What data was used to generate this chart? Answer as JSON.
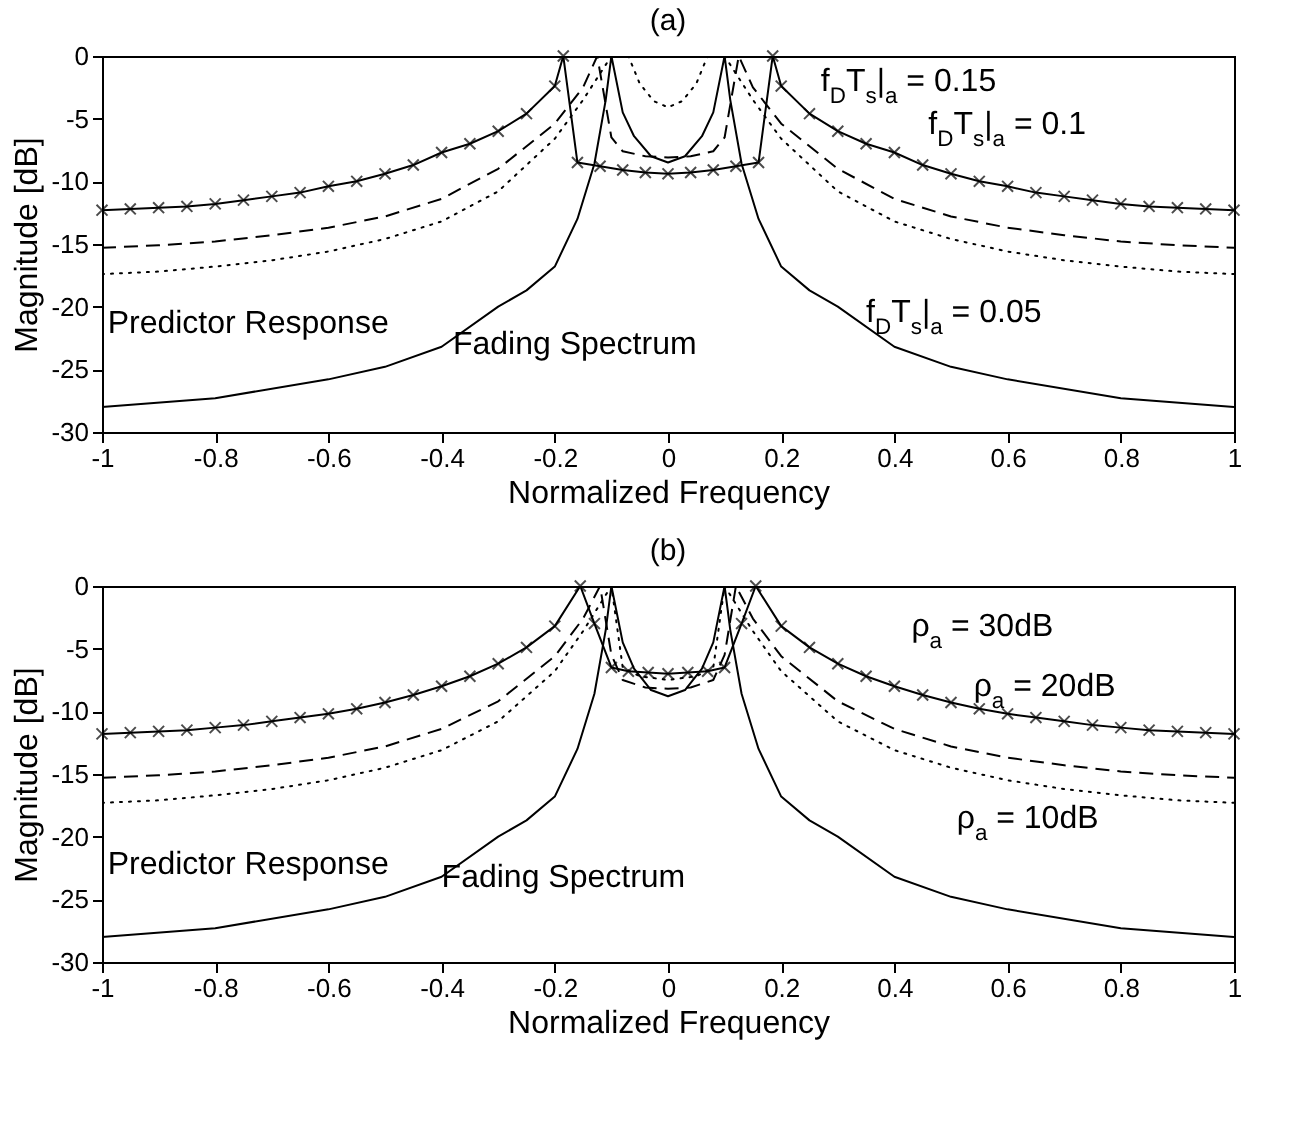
{
  "chart_data": [
    {
      "type": "line",
      "title": "(a)",
      "xlabel": "Normalized Frequency",
      "ylabel": "Magnitude [dB]",
      "xlim": [
        -1,
        1
      ],
      "ylim": [
        -30,
        0
      ],
      "xticks": [
        -1,
        -0.8,
        -0.6,
        -0.4,
        -0.2,
        0,
        0.2,
        0.4,
        0.6,
        0.8,
        1
      ],
      "yticks": [
        -30,
        -25,
        -20,
        -15,
        -10,
        -5,
        0
      ],
      "grid": false,
      "series": [
        {
          "color": "#000000",
          "line_style": "solid",
          "x": [
            -1,
            -0.8,
            -0.6,
            -0.5,
            -0.4,
            -0.3,
            -0.25,
            -0.2,
            -0.16,
            -0.13,
            -0.11,
            -0.1,
            -0.08,
            -0.06,
            -0.03,
            0,
            0.03,
            0.06,
            0.08,
            0.1,
            0.11,
            0.13,
            0.16,
            0.2,
            0.25,
            0.3,
            0.4,
            0.5,
            0.6,
            0.8,
            1
          ],
          "values": [
            -28,
            -27.3,
            -25.8,
            -24.8,
            -23.2,
            -20,
            -18.7,
            -16.8,
            -13,
            -8.6,
            -3.5,
            0,
            -4.5,
            -6.4,
            -8,
            -8.5,
            -8,
            -6.4,
            -4.5,
            0,
            -3.5,
            -8.6,
            -13,
            -16.8,
            -18.7,
            -20,
            -23.2,
            -24.8,
            -25.8,
            -27.3,
            -28
          ]
        },
        {
          "color": "#000000",
          "line_style": "solid",
          "marker": "cross",
          "x": [
            -1,
            -0.95,
            -0.9,
            -0.85,
            -0.8,
            -0.75,
            -0.7,
            -0.65,
            -0.6,
            -0.55,
            -0.5,
            -0.45,
            -0.4,
            -0.35,
            -0.3,
            -0.25,
            -0.2,
            -0.185,
            -0.16,
            -0.12,
            -0.08,
            -0.04,
            0,
            0.04,
            0.08,
            0.12,
            0.16,
            0.185,
            0.2,
            0.25,
            0.3,
            0.35,
            0.4,
            0.45,
            0.5,
            0.55,
            0.6,
            0.65,
            0.7,
            0.75,
            0.8,
            0.85,
            0.9,
            0.95,
            1
          ],
          "values": [
            -12.3,
            -12.2,
            -12.1,
            -12,
            -11.8,
            -11.5,
            -11.2,
            -10.9,
            -10.4,
            -10,
            -9.4,
            -8.7,
            -7.7,
            -7,
            -6,
            -4.6,
            -2.4,
            0,
            -8.5,
            -8.8,
            -9.1,
            -9.3,
            -9.4,
            -9.3,
            -9.1,
            -8.8,
            -8.5,
            0,
            -2.4,
            -4.6,
            -6,
            -7,
            -7.7,
            -8.7,
            -9.4,
            -10,
            -10.4,
            -10.9,
            -11.2,
            -11.5,
            -11.8,
            -12,
            -12.1,
            -12.2,
            -12.3
          ]
        },
        {
          "color": "#000000",
          "line_style": "dashed",
          "x": [
            -1,
            -0.9,
            -0.8,
            -0.7,
            -0.6,
            -0.5,
            -0.4,
            -0.3,
            -0.2,
            -0.15,
            -0.125,
            -0.1,
            -0.08,
            -0.04,
            0,
            0.04,
            0.08,
            0.1,
            0.125,
            0.15,
            0.2,
            0.3,
            0.4,
            0.5,
            0.6,
            0.7,
            0.8,
            0.9,
            1
          ],
          "values": [
            -15.3,
            -15.1,
            -14.8,
            -14.3,
            -13.7,
            -12.8,
            -11.4,
            -9,
            -5.4,
            -2.5,
            0,
            -6.5,
            -7.6,
            -8,
            -8.1,
            -8,
            -7.6,
            -6.5,
            0,
            -2.5,
            -5.4,
            -9,
            -11.4,
            -12.8,
            -13.7,
            -14.3,
            -14.8,
            -15.1,
            -15.3
          ]
        },
        {
          "color": "#000000",
          "line_style": "dotted",
          "x": [
            -1,
            -0.9,
            -0.8,
            -0.7,
            -0.6,
            -0.5,
            -0.4,
            -0.3,
            -0.2,
            -0.15,
            -0.1,
            -0.07,
            -0.05,
            -0.025,
            0,
            0.025,
            0.05,
            0.07,
            0.1,
            0.15,
            0.2,
            0.3,
            0.4,
            0.5,
            0.6,
            0.7,
            0.8,
            0.9,
            1
          ],
          "values": [
            -17.4,
            -17.2,
            -16.8,
            -16.3,
            -15.6,
            -14.6,
            -13.2,
            -10.8,
            -6.6,
            -3.5,
            0,
            0,
            -2.2,
            -3.6,
            -4.1,
            -3.6,
            -2.2,
            0,
            0,
            -3.5,
            -6.6,
            -10.8,
            -13.2,
            -14.6,
            -15.6,
            -16.3,
            -16.8,
            -17.2,
            -17.4
          ]
        }
      ],
      "annotations": [
        "f$_{D}$T$_{s}$|$_{a}$ = 0.15",
        "f$_{D}$T$_{s}$|$_{a}$ = 0.1",
        "f$_{D}$T$_{s}$|$_{a}$ = 0.05",
        "Predictor Response",
        "Fading Spectrum"
      ]
    },
    {
      "type": "line",
      "title": "(b)",
      "xlabel": "Normalized Frequency",
      "ylabel": "Magnitude [dB]",
      "xlim": [
        -1,
        1
      ],
      "ylim": [
        -30,
        0
      ],
      "xticks": [
        -1,
        -0.8,
        -0.6,
        -0.4,
        -0.2,
        0,
        0.2,
        0.4,
        0.6,
        0.8,
        1
      ],
      "yticks": [
        -30,
        -25,
        -20,
        -15,
        -10,
        -5,
        0
      ],
      "grid": false,
      "series": [
        {
          "color": "#000000",
          "line_style": "solid",
          "x": [
            -1,
            -0.8,
            -0.6,
            -0.5,
            -0.4,
            -0.3,
            -0.25,
            -0.2,
            -0.16,
            -0.13,
            -0.11,
            -0.1,
            -0.08,
            -0.06,
            -0.03,
            0,
            0.03,
            0.06,
            0.08,
            0.1,
            0.11,
            0.13,
            0.16,
            0.2,
            0.25,
            0.3,
            0.4,
            0.5,
            0.6,
            0.8,
            1
          ],
          "values": [
            -28,
            -27.3,
            -25.8,
            -24.8,
            -23.2,
            -20,
            -18.7,
            -16.8,
            -13,
            -8.6,
            -3.5,
            0,
            -4.5,
            -6.6,
            -8.3,
            -8.8,
            -8.3,
            -6.6,
            -4.5,
            0,
            -3.5,
            -8.6,
            -13,
            -16.8,
            -18.7,
            -20,
            -23.2,
            -24.8,
            -25.8,
            -27.3,
            -28
          ]
        },
        {
          "color": "#000000",
          "line_style": "solid",
          "marker": "cross",
          "x": [
            -1,
            -0.95,
            -0.9,
            -0.85,
            -0.8,
            -0.75,
            -0.7,
            -0.65,
            -0.6,
            -0.55,
            -0.5,
            -0.45,
            -0.4,
            -0.35,
            -0.3,
            -0.25,
            -0.2,
            -0.155,
            -0.13,
            -0.1,
            -0.07,
            -0.035,
            0,
            0.035,
            0.07,
            0.1,
            0.13,
            0.155,
            0.2,
            0.25,
            0.3,
            0.35,
            0.4,
            0.45,
            0.5,
            0.55,
            0.6,
            0.65,
            0.7,
            0.75,
            0.8,
            0.85,
            0.9,
            0.95,
            1
          ],
          "values": [
            -11.8,
            -11.7,
            -11.6,
            -11.5,
            -11.3,
            -11.1,
            -10.8,
            -10.5,
            -10.2,
            -9.8,
            -9.3,
            -8.7,
            -8,
            -7.2,
            -6.2,
            -4.9,
            -3.2,
            0,
            -3,
            -6.5,
            -6.8,
            -6.9,
            -7,
            -6.9,
            -6.8,
            -6.5,
            -3,
            0,
            -3.2,
            -4.9,
            -6.2,
            -7.2,
            -8,
            -8.7,
            -9.3,
            -9.8,
            -10.2,
            -10.5,
            -10.8,
            -11.1,
            -11.3,
            -11.5,
            -11.6,
            -11.7,
            -11.8
          ]
        },
        {
          "color": "#000000",
          "line_style": "dashed",
          "x": [
            -1,
            -0.9,
            -0.8,
            -0.7,
            -0.6,
            -0.5,
            -0.4,
            -0.3,
            -0.2,
            -0.15,
            -0.12,
            -0.1,
            -0.08,
            -0.04,
            0,
            0.04,
            0.08,
            0.1,
            0.12,
            0.15,
            0.2,
            0.3,
            0.4,
            0.5,
            0.6,
            0.7,
            0.8,
            0.9,
            1
          ],
          "values": [
            -15.3,
            -15.1,
            -14.8,
            -14.3,
            -13.7,
            -12.8,
            -11.4,
            -9.2,
            -5.6,
            -2.6,
            0,
            -5.5,
            -7.5,
            -8.1,
            -8.2,
            -8.1,
            -7.5,
            -5.5,
            0,
            -2.6,
            -5.6,
            -9.2,
            -11.4,
            -12.8,
            -13.7,
            -14.3,
            -14.8,
            -15.1,
            -15.3
          ]
        },
        {
          "color": "#000000",
          "line_style": "dotted",
          "x": [
            -1,
            -0.9,
            -0.8,
            -0.7,
            -0.6,
            -0.5,
            -0.4,
            -0.3,
            -0.2,
            -0.15,
            -0.1,
            -0.08,
            -0.05,
            0,
            0.05,
            0.08,
            0.1,
            0.15,
            0.2,
            0.3,
            0.4,
            0.5,
            0.6,
            0.7,
            0.8,
            0.9,
            1
          ],
          "values": [
            -17.3,
            -17.1,
            -16.7,
            -16.2,
            -15.5,
            -14.5,
            -13.1,
            -10.8,
            -6.8,
            -3.6,
            0,
            -6.5,
            -7.2,
            -7.5,
            -7.2,
            -6.5,
            0,
            -3.6,
            -6.8,
            -10.8,
            -13.1,
            -14.5,
            -15.5,
            -16.2,
            -16.7,
            -17.1,
            -17.3
          ]
        }
      ],
      "annotations": [
        "ρ$_{a}$ = 30dB",
        "ρ$_{a}$ = 20dB",
        "ρ$_{a}$ = 10dB",
        "Predictor Response",
        "Fading Spectrum"
      ]
    }
  ]
}
